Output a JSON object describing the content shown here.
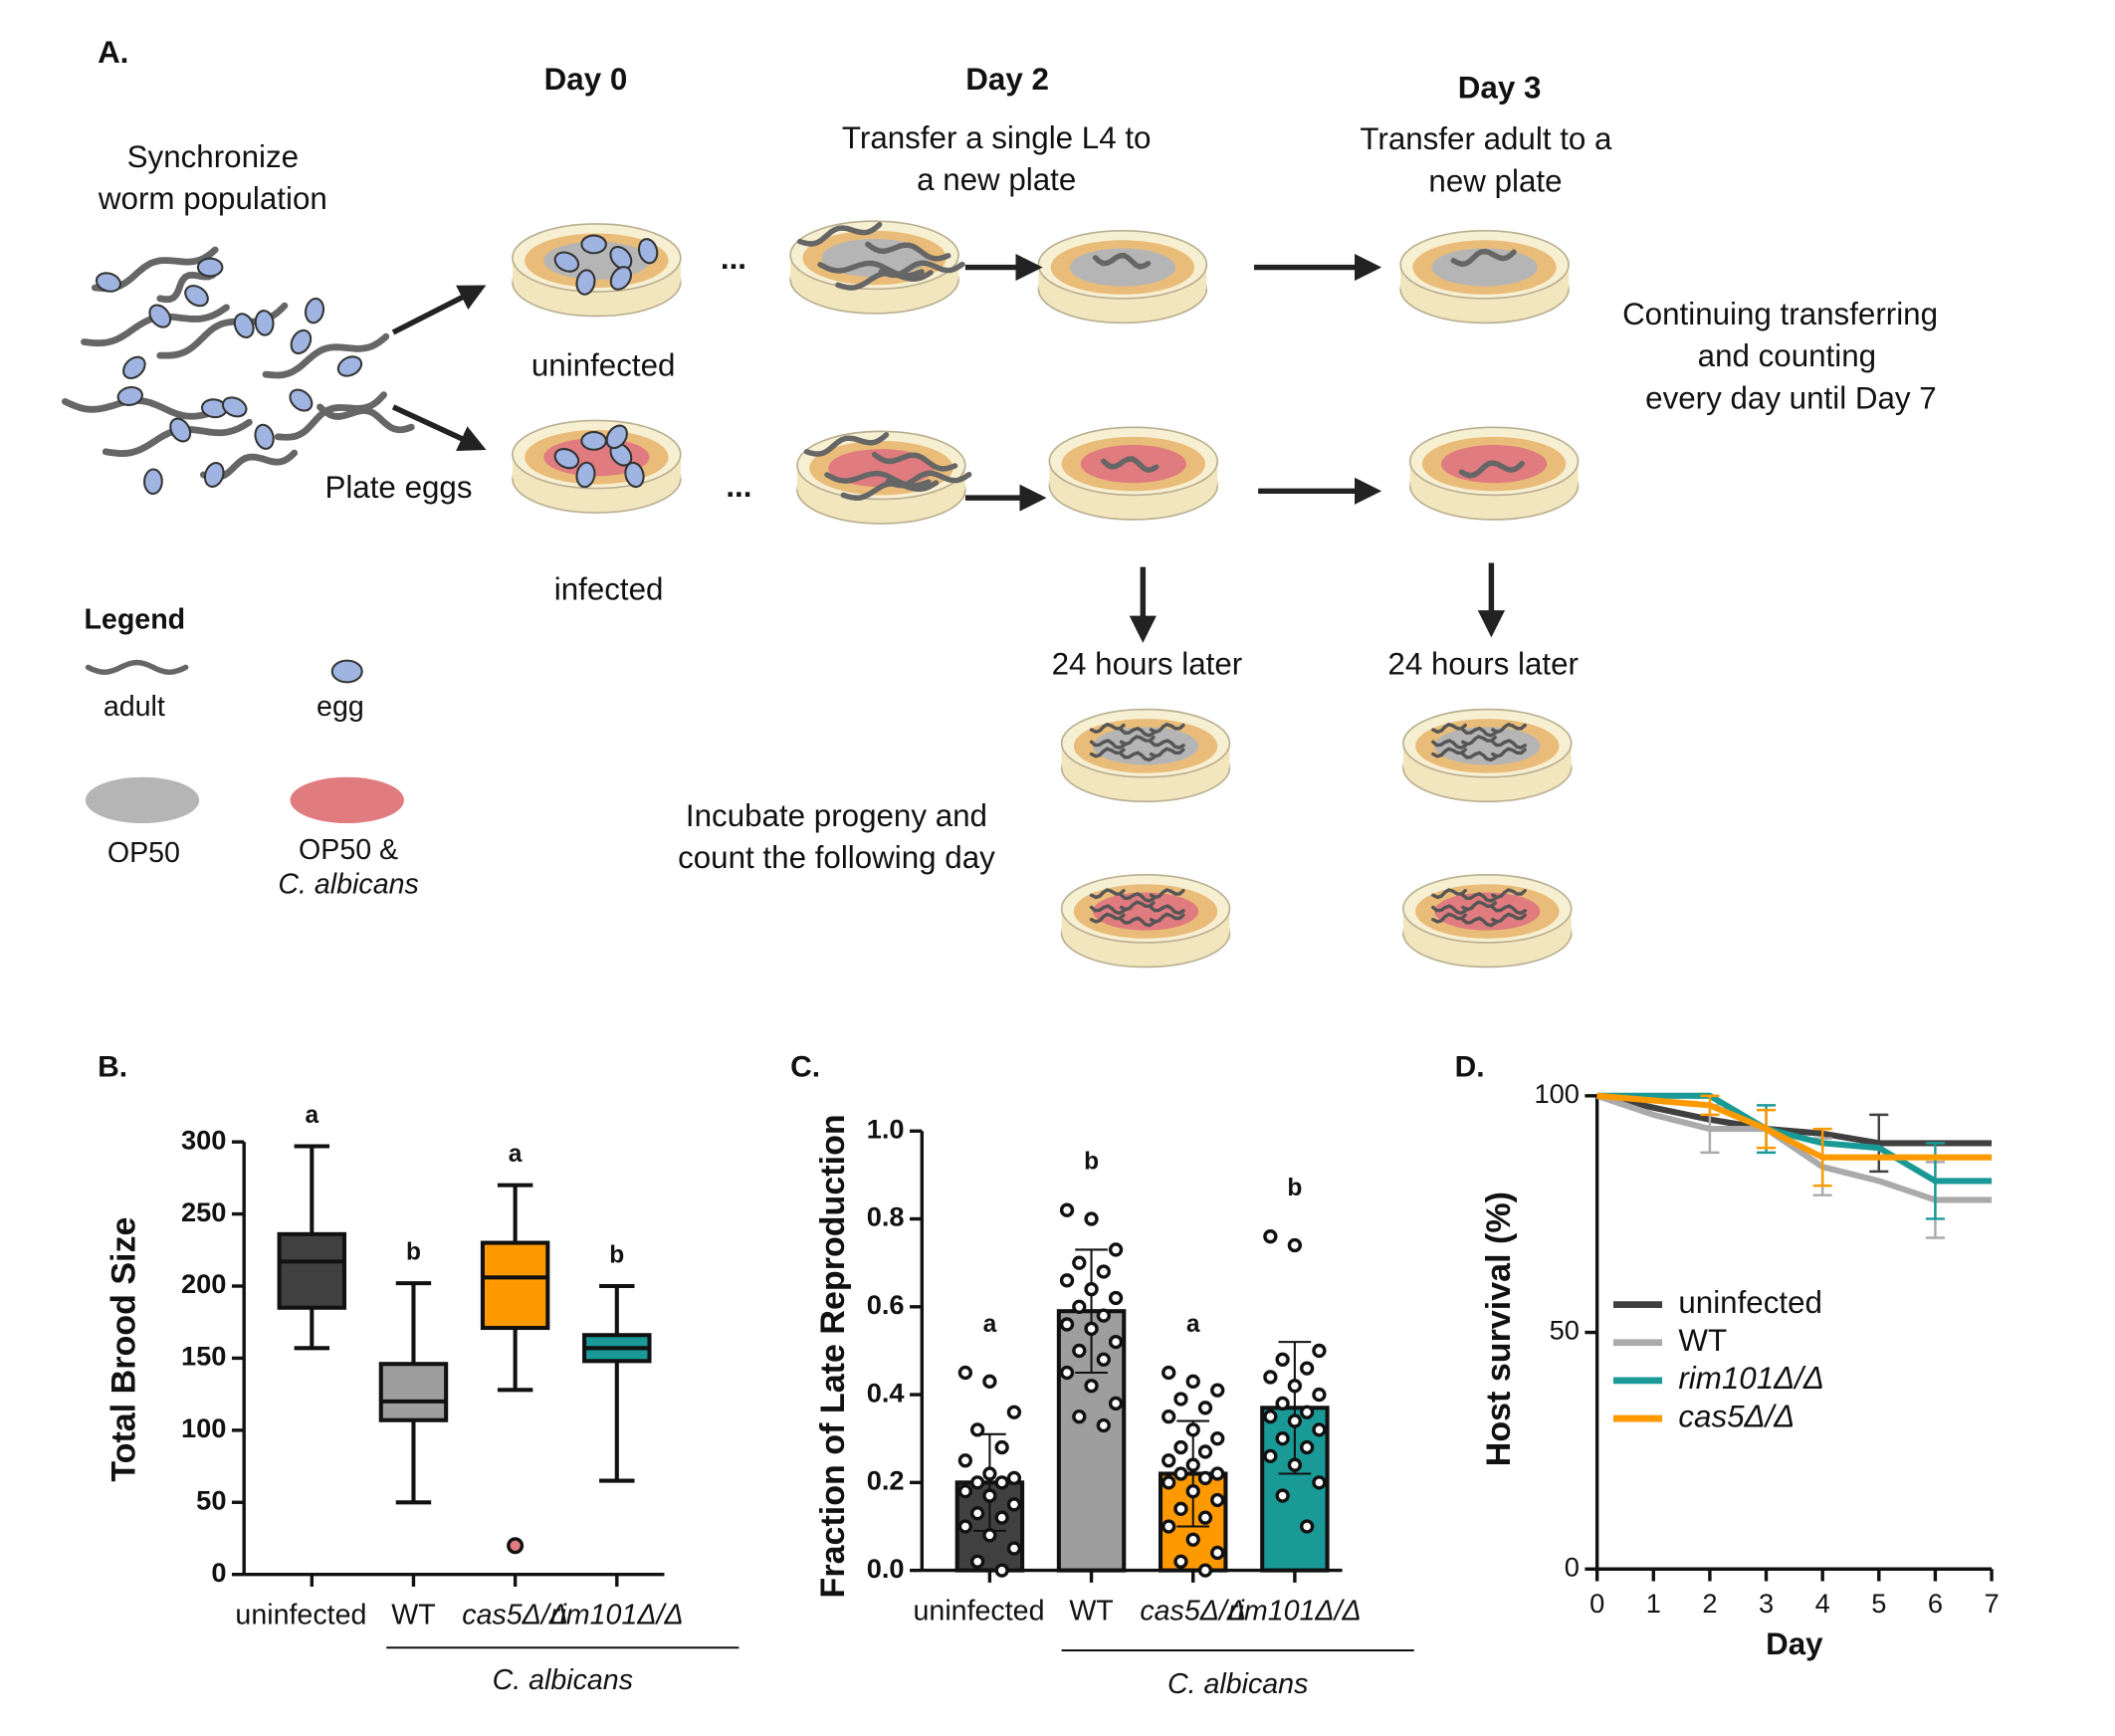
{
  "diagram": {
    "label": "A.",
    "day_labels": [
      "Day 0",
      "Day 2",
      "Day 3"
    ],
    "synchronize": [
      "Synchronize",
      "worm population"
    ],
    "transfer_l4": [
      "Transfer a single L4 to",
      "a new plate"
    ],
    "transfer_adult": [
      "Transfer adult to a",
      "new plate"
    ],
    "continuing": [
      "Continuing transferring",
      "and counting",
      "every day until Day 7"
    ],
    "plate_eggs": "Plate eggs",
    "uninfected": "uninfected",
    "infected": "infected",
    "ellipsis": "...",
    "later": [
      "24 hours later",
      "24 hours later"
    ],
    "incubate": [
      "Incubate progeny and",
      "count the following day"
    ],
    "legend": {
      "title": "Legend",
      "adult": "adult",
      "egg": "egg",
      "op50": "OP50",
      "op50_ca": [
        "OP50 &",
        "C. albicans"
      ]
    }
  },
  "chart_data": [
    {
      "type": "box",
      "panel": "B.",
      "ylabel": "Total Brood Size",
      "categories": [
        "uninfected",
        "WT",
        "cas5Δ/Δ",
        "rim101Δ/Δ"
      ],
      "group_label": "C. albicans",
      "letters": [
        "a",
        "b",
        "a",
        "b"
      ],
      "colors": [
        "#404040",
        "#9e9e9e",
        "#ff9900",
        "#1a9a96"
      ],
      "boxes": [
        {
          "min": 157,
          "q1": 185,
          "median": 217,
          "q3": 236,
          "max": 297
        },
        {
          "min": 50,
          "q1": 107,
          "median": 120,
          "q3": 146,
          "max": 202
        },
        {
          "min": 128,
          "q1": 171,
          "median": 206,
          "q3": 230,
          "max": 270
        },
        {
          "min": 65,
          "q1": 148,
          "median": 157,
          "q3": 166,
          "max": 200
        }
      ],
      "outliers": [
        [],
        [],
        [
          20
        ],
        []
      ],
      "ylim": [
        0,
        300
      ],
      "yticks": [
        0,
        50,
        100,
        150,
        200,
        250,
        300
      ]
    },
    {
      "type": "bar",
      "panel": "C.",
      "ylabel": "Fraction of Late Reproduction",
      "categories": [
        "uninfected",
        "WT",
        "cas5Δ/Δ",
        "rim101Δ/Δ"
      ],
      "group_label": "C. albicans",
      "letters": [
        "a",
        "b",
        "a",
        "b"
      ],
      "colors": [
        "#404040",
        "#9e9e9e",
        "#ff9900",
        "#1a9a96"
      ],
      "values": [
        0.2,
        0.59,
        0.22,
        0.37
      ],
      "errors": [
        0.11,
        0.14,
        0.12,
        0.15
      ],
      "points": [
        [
          0.45,
          0.43,
          0.36,
          0.32,
          0.28,
          0.25,
          0.22,
          0.21,
          0.2,
          0.2,
          0.18,
          0.17,
          0.15,
          0.13,
          0.12,
          0.1,
          0.08,
          0.05,
          0.02,
          0.0
        ],
        [
          0.82,
          0.8,
          0.73,
          0.7,
          0.68,
          0.66,
          0.64,
          0.62,
          0.6,
          0.58,
          0.56,
          0.55,
          0.52,
          0.5,
          0.48,
          0.45,
          0.42,
          0.38,
          0.35,
          0.33
        ],
        [
          0.45,
          0.43,
          0.41,
          0.39,
          0.37,
          0.35,
          0.32,
          0.3,
          0.28,
          0.27,
          0.25,
          0.24,
          0.22,
          0.22,
          0.21,
          0.2,
          0.18,
          0.16,
          0.14,
          0.12,
          0.1,
          0.07,
          0.04,
          0.02,
          0.0
        ],
        [
          0.76,
          0.74,
          0.5,
          0.48,
          0.46,
          0.44,
          0.42,
          0.4,
          0.38,
          0.36,
          0.35,
          0.34,
          0.32,
          0.3,
          0.28,
          0.26,
          0.24,
          0.2,
          0.17,
          0.1
        ]
      ],
      "ylim": [
        0,
        1
      ],
      "yticks": [
        {
          "value": 0,
          "label": "0.0"
        },
        0.2,
        0.4,
        0.6,
        0.8,
        {
          "value": 1,
          "label": "1.0"
        }
      ]
    },
    {
      "type": "line",
      "panel": "D.",
      "xlabel": "Day",
      "ylabel": "Host survival (%)",
      "x": [
        0,
        1,
        2,
        3,
        4,
        5,
        6,
        7
      ],
      "series": [
        {
          "name": "uninfected",
          "color": "#404040",
          "values": [
            100,
            97.5,
            95,
            93,
            92,
            90,
            90,
            90
          ],
          "errors": [
            null,
            null,
            null,
            null,
            null,
            6,
            null,
            null
          ]
        },
        {
          "name": "WT",
          "color": "#aaaaaa",
          "values": [
            100,
            96,
            93,
            93,
            85,
            82,
            78,
            78
          ],
          "errors": [
            null,
            null,
            5,
            null,
            6,
            null,
            8,
            null
          ]
        },
        {
          "name": "rim101Δ/Δ",
          "color": "#1a9a96",
          "values": [
            100,
            100,
            100,
            93,
            90,
            89,
            82,
            82
          ],
          "errors": [
            null,
            null,
            null,
            5,
            null,
            null,
            8,
            null
          ]
        },
        {
          "name": "cas5Δ/Δ",
          "color": "#ff9900",
          "values": [
            100,
            99,
            98,
            93,
            87,
            87,
            87,
            87
          ],
          "errors": [
            null,
            null,
            2,
            4,
            6,
            null,
            null,
            null
          ]
        }
      ],
      "xlim": [
        0,
        7
      ],
      "xticks": [
        0,
        1,
        2,
        3,
        4,
        5,
        6,
        7
      ],
      "ylim": [
        0,
        100
      ],
      "yticks": [
        0,
        50,
        100
      ],
      "legend": "lower left"
    }
  ]
}
